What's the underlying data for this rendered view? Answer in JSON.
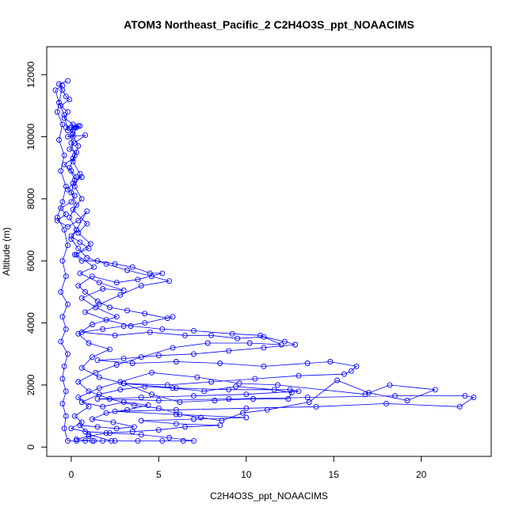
{
  "chart_data": {
    "type": "line",
    "title": "ATOM3 Northeast_Pacific_2 C2H4O3S_ppt_NOAACIMS",
    "xlabel": "C2H4O3S_ppt_NOAACIMS",
    "ylabel": "Altitude (m)",
    "xlim": [
      -1.4,
      24.0
    ],
    "ylim": [
      -300,
      12900
    ],
    "xticks": [
      0,
      5,
      10,
      15,
      20
    ],
    "yticks": [
      0,
      2000,
      4000,
      6000,
      8000,
      10000,
      12000
    ],
    "series_color": "#0000ff",
    "marker": "open-circle",
    "series": [
      {
        "name": "",
        "points": [
          [
            -0.2,
            11800
          ],
          [
            -0.7,
            11700
          ],
          [
            -0.5,
            11500
          ],
          [
            -0.3,
            11300
          ],
          [
            -0.1,
            11200
          ],
          [
            -0.6,
            11000
          ],
          [
            -0.2,
            10800
          ],
          [
            -0.4,
            10600
          ],
          [
            0.1,
            10400
          ],
          [
            -0.3,
            10300
          ],
          [
            0.2,
            10300
          ],
          [
            0.5,
            10350
          ],
          [
            0.3,
            10300
          ],
          [
            0.1,
            10200
          ],
          [
            -0.2,
            10000
          ],
          [
            0.8,
            10050
          ],
          [
            0.2,
            9800
          ],
          [
            -0.1,
            9600
          ],
          [
            0.3,
            9500
          ],
          [
            0.1,
            9300
          ],
          [
            -0.4,
            9100
          ],
          [
            0.0,
            8900
          ],
          [
            0.3,
            8700
          ],
          [
            0.6,
            8700
          ],
          [
            0.1,
            8500
          ],
          [
            -0.2,
            8300
          ],
          [
            0.2,
            8100
          ],
          [
            0.0,
            7900
          ],
          [
            -0.6,
            7700
          ],
          [
            -0.3,
            7500
          ],
          [
            -0.8,
            7300
          ],
          [
            -0.2,
            7100
          ],
          [
            0.4,
            7300
          ],
          [
            0.9,
            7600
          ],
          [
            0.3,
            7000
          ],
          [
            0.0,
            6800
          ],
          [
            0.5,
            6600
          ],
          [
            1.0,
            6400
          ],
          [
            0.2,
            6200
          ],
          [
            0.6,
            6000
          ],
          [
            1.5,
            6000
          ],
          [
            2.5,
            5900
          ],
          [
            3.5,
            5800
          ],
          [
            4.5,
            5600
          ],
          [
            5.2,
            5600
          ],
          [
            3.8,
            5400
          ],
          [
            2.6,
            5300
          ],
          [
            1.2,
            5500
          ],
          [
            0.4,
            5200
          ],
          [
            0.8,
            5000
          ],
          [
            1.5,
            4700
          ],
          [
            2.2,
            4500
          ],
          [
            3.2,
            4400
          ],
          [
            4.2,
            4300
          ],
          [
            5.5,
            4150
          ],
          [
            5.8,
            4200
          ],
          [
            4.2,
            4000
          ],
          [
            3.0,
            3900
          ],
          [
            1.8,
            3800
          ],
          [
            0.6,
            3700
          ],
          [
            2.5,
            3600
          ],
          [
            4.5,
            3700
          ],
          [
            6.5,
            3600
          ],
          [
            8.0,
            3600
          ],
          [
            9.5,
            3500
          ],
          [
            11.0,
            3550
          ],
          [
            12.2,
            3400
          ],
          [
            12.8,
            3300
          ],
          [
            11.0,
            3200
          ],
          [
            9.0,
            3100
          ],
          [
            7.0,
            3000
          ],
          [
            5.0,
            2950
          ],
          [
            3.0,
            2850
          ],
          [
            1.5,
            2800
          ],
          [
            3.5,
            2700
          ],
          [
            6.0,
            2750
          ],
          [
            8.5,
            2700
          ],
          [
            11.0,
            2600
          ],
          [
            13.5,
            2700
          ],
          [
            14.8,
            2750
          ],
          [
            16.3,
            2600
          ],
          [
            16.0,
            2450
          ],
          [
            15.6,
            2350
          ],
          [
            13.0,
            2300
          ],
          [
            10.5,
            2200
          ],
          [
            8.0,
            2100
          ],
          [
            5.5,
            2000
          ],
          [
            3.0,
            2050
          ],
          [
            6.0,
            1900
          ],
          [
            9.0,
            1850
          ],
          [
            12.5,
            1850
          ],
          [
            13.0,
            1800
          ],
          [
            10.0,
            1700
          ],
          [
            7.0,
            1650
          ],
          [
            4.0,
            1600
          ],
          [
            1.5,
            1550
          ],
          [
            5.0,
            1500
          ],
          [
            9.0,
            1550
          ],
          [
            13.5,
            1600
          ],
          [
            18.5,
            1650
          ],
          [
            22.5,
            1650
          ],
          [
            23.0,
            1600
          ],
          [
            22.2,
            1300
          ],
          [
            18.0,
            1400
          ],
          [
            14.0,
            1300
          ],
          [
            10.0,
            1250
          ],
          [
            6.0,
            1200
          ],
          [
            2.5,
            1150
          ],
          [
            6.0,
            1050
          ],
          [
            10.0,
            950
          ],
          [
            7.0,
            900
          ],
          [
            4.0,
            850
          ],
          [
            6.0,
            750
          ],
          [
            8.5,
            700
          ],
          [
            6.5,
            650
          ],
          [
            5.0,
            550
          ],
          [
            3.5,
            500
          ],
          [
            2.0,
            450
          ],
          [
            1.0,
            350
          ],
          [
            0.3,
            250
          ],
          [
            1.2,
            200
          ],
          [
            2.5,
            200
          ],
          [
            3.8,
            200
          ],
          [
            5.2,
            200
          ],
          [
            6.4,
            200
          ],
          [
            7.0,
            200
          ],
          [
            5.6,
            300
          ],
          [
            4.0,
            400
          ],
          [
            2.2,
            450
          ],
          [
            0.8,
            500
          ],
          [
            0.0,
            600
          ],
          [
            0.6,
            800
          ],
          [
            0.2,
            1000
          ],
          [
            1.0,
            1300
          ],
          [
            0.4,
            1600
          ],
          [
            1.6,
            1900
          ],
          [
            2.8,
            2100
          ],
          [
            4.6,
            2400
          ],
          [
            7.2,
            2250
          ],
          [
            9.6,
            2050
          ],
          [
            11.8,
            2000
          ],
          [
            16.8,
            1700
          ],
          [
            18.2,
            2000
          ],
          [
            20.8,
            1850
          ],
          [
            19.2,
            1500
          ],
          [
            17.0,
            1750
          ],
          [
            15.2,
            2150
          ],
          [
            13.6,
            1450
          ],
          [
            11.2,
            1200
          ],
          [
            9.8,
            1100
          ],
          [
            8.6,
            850
          ],
          [
            7.4,
            950
          ],
          [
            6.2,
            1050
          ],
          [
            5.0,
            1250
          ],
          [
            3.6,
            1350
          ],
          [
            2.2,
            1550
          ],
          [
            1.0,
            1800
          ],
          [
            0.4,
            2100
          ],
          [
            1.4,
            2400
          ],
          [
            2.6,
            2650
          ],
          [
            4.0,
            2900
          ],
          [
            5.8,
            3200
          ],
          [
            7.8,
            3350
          ],
          [
            10.2,
            3350
          ],
          [
            12.0,
            3300
          ],
          [
            10.8,
            3600
          ],
          [
            9.2,
            3650
          ],
          [
            7.0,
            3750
          ],
          [
            5.2,
            3800
          ],
          [
            3.4,
            3900
          ],
          [
            2.0,
            4100
          ],
          [
            0.8,
            4350
          ],
          [
            1.6,
            4600
          ],
          [
            2.8,
            4900
          ],
          [
            4.0,
            5200
          ],
          [
            5.6,
            5350
          ],
          [
            4.6,
            5500
          ],
          [
            3.2,
            5700
          ],
          [
            2.0,
            5900
          ],
          [
            0.9,
            6100
          ],
          [
            0.4,
            6400
          ],
          [
            0.0,
            6700
          ],
          [
            0.3,
            7000
          ],
          [
            -0.1,
            7400
          ],
          [
            0.3,
            7800
          ],
          [
            0.0,
            8200
          ],
          [
            0.2,
            8600
          ],
          [
            -0.1,
            9000
          ],
          [
            0.2,
            9400
          ],
          [
            0.0,
            9800
          ],
          [
            0.1,
            10100
          ],
          [
            0.0,
            10300
          ],
          [
            0.4,
            10350
          ],
          [
            -0.2,
            10200
          ],
          [
            -0.4,
            10700
          ],
          [
            -0.7,
            11100
          ],
          [
            -0.9,
            11500
          ],
          [
            -0.5,
            11650
          ],
          [
            -0.8,
            10800
          ],
          [
            -0.5,
            10400
          ],
          [
            -0.7,
            9900
          ],
          [
            -0.4,
            9400
          ],
          [
            -0.6,
            8900
          ],
          [
            -0.3,
            8400
          ],
          [
            -0.5,
            7900
          ],
          [
            -0.8,
            7400
          ],
          [
            -0.4,
            7000
          ],
          [
            -0.2,
            6500
          ],
          [
            -0.5,
            6000
          ],
          [
            -0.3,
            5500
          ],
          [
            -0.6,
            5000
          ],
          [
            -0.2,
            4600
          ],
          [
            -0.5,
            4200
          ],
          [
            -0.3,
            3800
          ],
          [
            -0.6,
            3400
          ],
          [
            -0.2,
            3000
          ],
          [
            -0.4,
            2600
          ],
          [
            -0.5,
            2200
          ],
          [
            -0.3,
            1800
          ],
          [
            -0.5,
            1400
          ],
          [
            -0.3,
            1000
          ],
          [
            -0.4,
            600
          ],
          [
            -0.2,
            200
          ],
          [
            0.3,
            200
          ],
          [
            0.8,
            200
          ],
          [
            1.3,
            200
          ],
          [
            1.8,
            200
          ],
          [
            2.3,
            200
          ],
          [
            1.0,
            400
          ],
          [
            0.5,
            700
          ],
          [
            1.5,
            650
          ],
          [
            2.6,
            600
          ],
          [
            3.6,
            650
          ],
          [
            2.4,
            800
          ],
          [
            1.2,
            900
          ],
          [
            2.0,
            1100
          ],
          [
            3.2,
            1200
          ],
          [
            4.4,
            1350
          ],
          [
            3.0,
            1450
          ],
          [
            1.8,
            1300
          ],
          [
            0.6,
            1450
          ],
          [
            1.6,
            1700
          ],
          [
            2.8,
            1850
          ],
          [
            4.2,
            1950
          ],
          [
            5.8,
            1900
          ],
          [
            7.6,
            1800
          ],
          [
            9.4,
            1950
          ],
          [
            11.6,
            1850
          ],
          [
            12.6,
            1750
          ],
          [
            12.4,
            1550
          ],
          [
            10.4,
            1550
          ],
          [
            8.2,
            1500
          ],
          [
            6.2,
            1450
          ],
          [
            4.6,
            1700
          ],
          [
            3.0,
            2050
          ],
          [
            1.6,
            2250
          ],
          [
            0.6,
            2550
          ],
          [
            1.2,
            2900
          ],
          [
            2.2,
            3150
          ],
          [
            1.0,
            3350
          ],
          [
            0.4,
            3650
          ],
          [
            1.2,
            3950
          ],
          [
            2.6,
            4200
          ],
          [
            1.4,
            4500
          ],
          [
            0.6,
            4800
          ],
          [
            1.8,
            5100
          ],
          [
            3.0,
            5050
          ],
          [
            1.6,
            5300
          ],
          [
            0.5,
            5600
          ],
          [
            1.3,
            5800
          ],
          [
            0.3,
            6200
          ],
          [
            1.1,
            6550
          ],
          [
            0.4,
            6900
          ],
          [
            0.9,
            7200
          ],
          [
            0.1,
            7650
          ],
          [
            0.6,
            8000
          ],
          [
            0.2,
            8400
          ],
          [
            0.5,
            8800
          ],
          [
            0.1,
            9200
          ],
          [
            0.4,
            9700
          ],
          [
            0.1,
            10000
          ],
          [
            0.3,
            10300
          ]
        ]
      }
    ]
  }
}
